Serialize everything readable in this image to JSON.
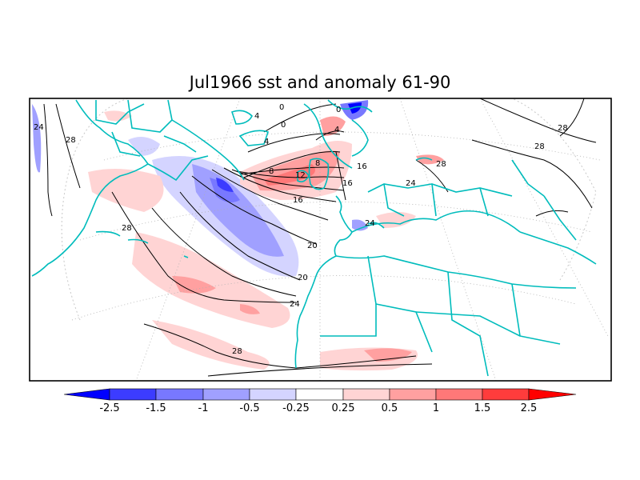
{
  "title": "Jul1966 sst and anomaly 61-90",
  "colorbar": {
    "tick_labels": [
      "-2.5",
      "-1.5",
      "-1",
      "-0.5",
      "-0.25",
      "0.25",
      "0.5",
      "1",
      "1.5",
      "2.5"
    ],
    "colors": [
      "#0000ff",
      "#3c3cff",
      "#7878ff",
      "#a0a0ff",
      "#d4d4ff",
      "#ffffff",
      "#ffd4d4",
      "#ffa0a0",
      "#ff7878",
      "#ff3c3c",
      "#ff0000"
    ]
  },
  "contour_labels": [
    "24",
    "28",
    "28",
    "28",
    "28",
    "28",
    "24",
    "24",
    "24",
    "20",
    "20",
    "16",
    "16",
    "16",
    "12",
    "8",
    "8",
    "4",
    "4",
    "0",
    "0",
    "4",
    "0",
    "28"
  ],
  "colors": {
    "coast": "#00bcbc",
    "contour": "#000000",
    "frame": "#000000",
    "grid": "#b0b0b0"
  }
}
